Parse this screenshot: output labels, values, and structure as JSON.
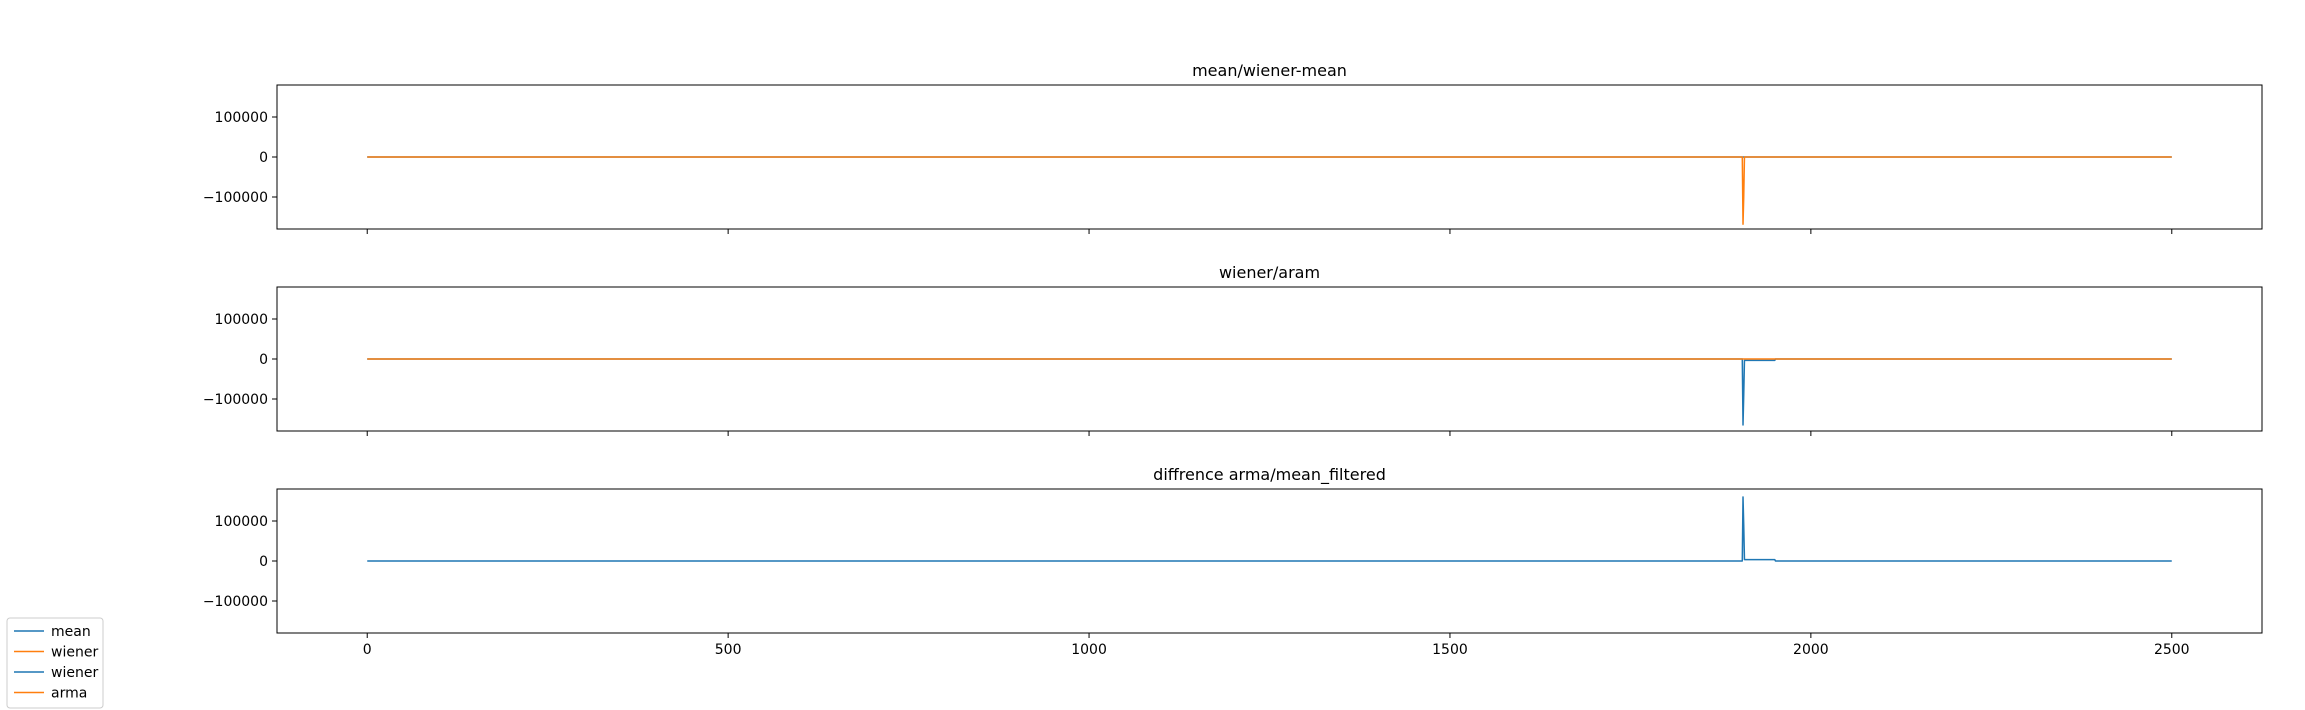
{
  "chart_data": [
    {
      "type": "line",
      "title": "mean/wiener-mean",
      "xlim": [
        -125,
        2625
      ],
      "ylim": [
        -180000,
        180000
      ],
      "yticks": [
        100000,
        0,
        -100000
      ],
      "ytick_labels": [
        "100000",
        "0",
        "−100000"
      ],
      "show_xtick_labels": false,
      "series": [
        {
          "color": "#1f77b4",
          "x": [
            0,
            2500
          ],
          "y": [
            0,
            0
          ]
        },
        {
          "color": "#ff7f0e",
          "x": [
            0,
            1905,
            1906,
            1907,
            1908,
            2500
          ],
          "y": [
            0,
            0,
            -168000,
            -100000,
            0,
            0
          ]
        }
      ]
    },
    {
      "type": "line",
      "title": "wiener/aram",
      "xlim": [
        -125,
        2625
      ],
      "ylim": [
        -180000,
        180000
      ],
      "yticks": [
        100000,
        0,
        -100000
      ],
      "ytick_labels": [
        "100000",
        "0",
        "−100000"
      ],
      "show_xtick_labels": false,
      "series": [
        {
          "color": "#1f77b4",
          "x": [
            0,
            1905,
            1906,
            1907,
            1908,
            1950,
            1951,
            2500
          ],
          "y": [
            0,
            0,
            -165000,
            -90000,
            -3500,
            -3500,
            0,
            0
          ]
        },
        {
          "color": "#ff7f0e",
          "x": [
            0,
            2500
          ],
          "y": [
            0,
            0
          ]
        }
      ]
    },
    {
      "type": "line",
      "title": "diffrence arma/mean_filtered",
      "xlim": [
        -125,
        2625
      ],
      "ylim": [
        -180000,
        180000
      ],
      "yticks": [
        100000,
        0,
        -100000
      ],
      "ytick_labels": [
        "100000",
        "0",
        "−100000"
      ],
      "xticks": [
        0,
        500,
        1000,
        1500,
        2000,
        2500
      ],
      "xtick_labels": [
        "0",
        "500",
        "1000",
        "1500",
        "2000",
        "2500"
      ],
      "show_xtick_labels": true,
      "series": [
        {
          "color": "#1f77b4",
          "x": [
            0,
            1905,
            1906,
            1907,
            1908,
            1950,
            1951,
            2500
          ],
          "y": [
            0,
            0,
            160000,
            90000,
            3500,
            3500,
            0,
            0
          ]
        }
      ]
    }
  ],
  "legend": {
    "placement": "bottom-left",
    "entries": [
      {
        "label": "mean",
        "color": "#1f77b4"
      },
      {
        "label": "wiener",
        "color": "#ff7f0e"
      },
      {
        "label": "wiener",
        "color": "#1f77b4"
      },
      {
        "label": "arma",
        "color": "#ff7f0e"
      }
    ]
  }
}
